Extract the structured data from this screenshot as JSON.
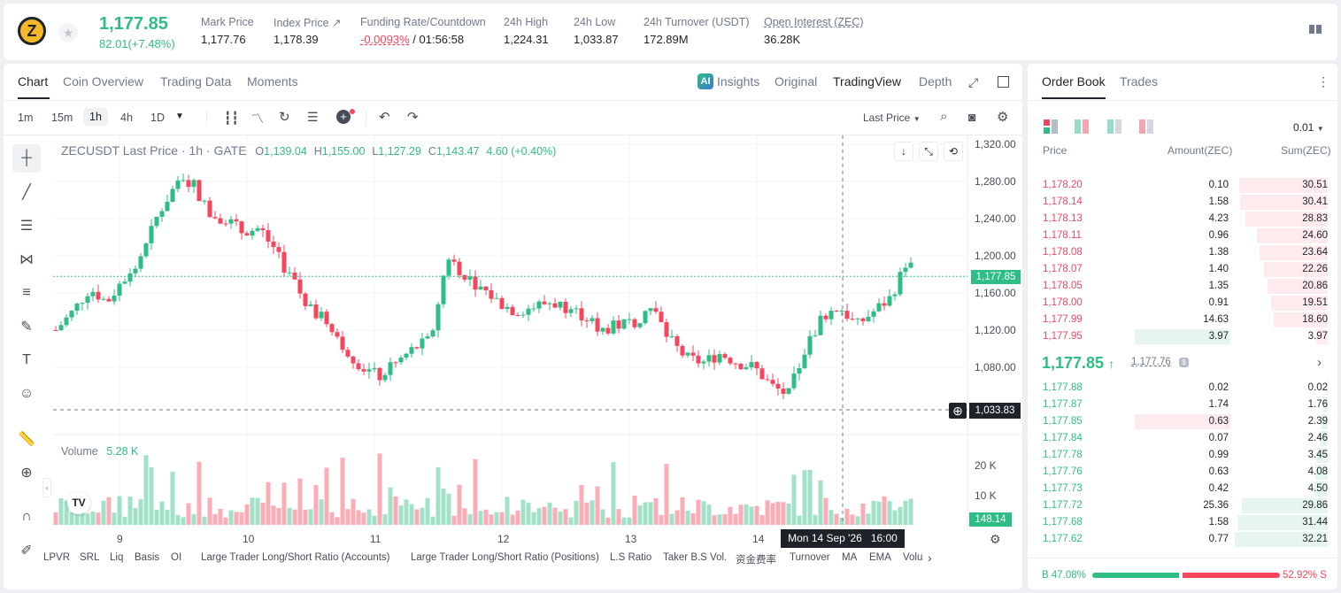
{
  "ticker": {
    "coin_glyph": "Z",
    "price": "1,177.85",
    "change": "82.01(+7.48%)"
  },
  "stats": [
    {
      "label": "Mark Price",
      "value": "1,177.76"
    },
    {
      "label": "Index Price ↗",
      "value": "1,178.39"
    },
    {
      "label": "Funding Rate/Countdown",
      "value_red": "-0.0093%",
      "value": " / 01:56:58"
    },
    {
      "label": "24h High",
      "value": "1,224.31"
    },
    {
      "label": "24h Low",
      "value": "1,033.87"
    },
    {
      "label": "24h Turnover (USDT)",
      "value": "172.89M"
    },
    {
      "label": "Open Interest (ZEC)",
      "value": "36.28K"
    }
  ],
  "chart_tabs": [
    "Chart",
    "Coin Overview",
    "Trading Data",
    "Moments"
  ],
  "view_tabs": {
    "insights": "Insights",
    "original": "Original",
    "tradingview": "TradingView",
    "depth": "Depth"
  },
  "timeframes": [
    "1m",
    "15m",
    "1h",
    "4h",
    "1D"
  ],
  "price_type": "Last Price",
  "legend": {
    "symbol": "ZECUSDT Last Price · 1h · GATE",
    "o": "1,139.04",
    "h": "1,155.00",
    "l": "1,127.29",
    "c": "1,143.47",
    "chg": "4.60 (+0.40%)"
  },
  "price_axis": [
    "1,320.00",
    "1,280.00",
    "1,240.00",
    "1,200.00",
    "1,160.00",
    "1,120.00",
    "1,080.00"
  ],
  "last_price_tag": "1,177.85",
  "crosshair_price": "1,033.83",
  "crosshair_time": "Mon 14 Sep '26   16:00",
  "volume": {
    "label": "Volume",
    "value": "5.28 K",
    "axis": [
      "20 K",
      "10 K"
    ],
    "tag": "148.14"
  },
  "time_axis": [
    "9",
    "10",
    "11",
    "12",
    "13",
    "14"
  ],
  "bottom_tabs": [
    "LPVR",
    "SRL",
    "Liq",
    "Basis",
    "OI",
    "Large Trader Long/Short Ratio (Accounts)",
    "Large Trader Long/Short Ratio (Positions)",
    "L.S Ratio",
    "Taker B.S Vol.",
    "资金费率",
    "Turnover",
    "MA",
    "EMA",
    "Volu"
  ],
  "chart_data": {
    "type": "candlestick",
    "asks": true
  },
  "orderbook": {
    "tabs": [
      "Order Book",
      "Trades"
    ],
    "tick": "0.01",
    "headers": [
      "Price",
      "Amount(ZEC)",
      "Sum(ZEC)"
    ],
    "asks": [
      {
        "p": "1,178.20",
        "a": "0.10",
        "s": "30.51",
        "d": 0.95
      },
      {
        "p": "1,178.14",
        "a": "1.58",
        "s": "30.41",
        "d": 0.94
      },
      {
        "p": "1,178.13",
        "a": "4.23",
        "s": "28.83",
        "d": 0.89
      },
      {
        "p": "1,178.11",
        "a": "0.96",
        "s": "24.60",
        "d": 0.76
      },
      {
        "p": "1,178.08",
        "a": "1.38",
        "s": "23.64",
        "d": 0.73
      },
      {
        "p": "1,178.07",
        "a": "1.40",
        "s": "22.26",
        "d": 0.69
      },
      {
        "p": "1,178.05",
        "a": "1.35",
        "s": "20.86",
        "d": 0.65
      },
      {
        "p": "1,178.00",
        "a": "0.91",
        "s": "19.51",
        "d": 0.61
      },
      {
        "p": "1,177.99",
        "a": "14.63",
        "s": "18.60",
        "d": 0.58
      },
      {
        "p": "1,177.95",
        "a": "3.97",
        "s": "3.97",
        "d": 0.12
      }
    ],
    "mid": {
      "price": "1,177.85",
      "mark": "1,177.76"
    },
    "bids": [
      {
        "p": "1,177.88",
        "a": "0.02",
        "s": "0.02",
        "d": 0.01
      },
      {
        "p": "1,177.87",
        "a": "1.74",
        "s": "1.76",
        "d": 0.05
      },
      {
        "p": "1,177.85",
        "a": "0.63",
        "s": "2.39",
        "d": 0.07
      },
      {
        "p": "1,177.84",
        "a": "0.07",
        "s": "2.46",
        "d": 0.08
      },
      {
        "p": "1,177.78",
        "a": "0.99",
        "s": "3.45",
        "d": 0.11
      },
      {
        "p": "1,177.76",
        "a": "0.63",
        "s": "4.08",
        "d": 0.13
      },
      {
        "p": "1,177.73",
        "a": "0.42",
        "s": "4.50",
        "d": 0.14
      },
      {
        "p": "1,177.72",
        "a": "25.36",
        "s": "29.86",
        "d": 0.92
      },
      {
        "p": "1,177.68",
        "a": "1.58",
        "s": "31.44",
        "d": 0.97
      },
      {
        "p": "1,177.62",
        "a": "0.77",
        "s": "32.21",
        "d": 1.0
      }
    ],
    "ratio": {
      "buy_label": "B",
      "buy": "47.08%",
      "sell": "52.92%",
      "sell_label": "S",
      "buy_frac": 0.4708
    },
    "colors": {
      "buy": "#2ebd85",
      "sell": "#f6465d"
    }
  }
}
